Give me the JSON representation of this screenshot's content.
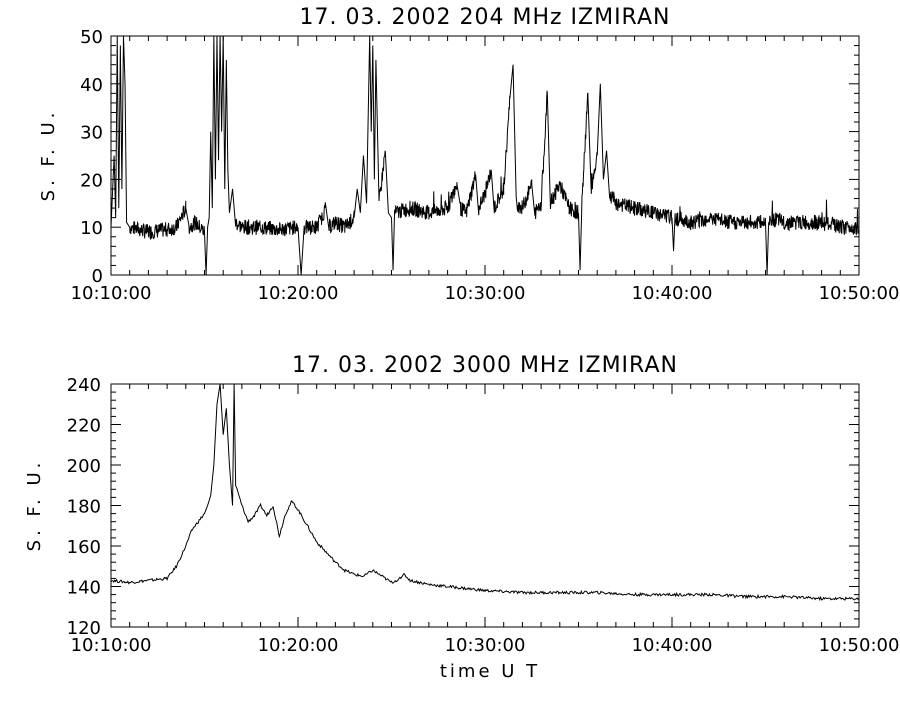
{
  "chart_data": [
    {
      "type": "line",
      "title": "17.  03.  2002    204  MHz    IZMIRAN",
      "ylabel": "S. F. U.",
      "xlabel": "",
      "x_unit": "time UT",
      "xlim": [
        "10:10:00",
        "10:50:00"
      ],
      "ylim": [
        0,
        50
      ],
      "x_tick_labels": [
        "10:10:00",
        "10:20:00",
        "10:30:00",
        "10:40:00",
        "10:50:00"
      ],
      "y_tick_labels": [
        "0",
        "10",
        "20",
        "30",
        "40",
        "50"
      ],
      "y_ticks": [
        0,
        10,
        20,
        30,
        40,
        50
      ],
      "grid": false,
      "baseline": 10,
      "points": [
        [
          "10:10:00",
          10
        ],
        [
          "10:10:10",
          25
        ],
        [
          "10:10:15",
          12
        ],
        [
          "10:10:20",
          50
        ],
        [
          "10:10:25",
          14
        ],
        [
          "10:10:30",
          48
        ],
        [
          "10:10:35",
          18
        ],
        [
          "10:10:40",
          50
        ],
        [
          "10:10:45",
          40
        ],
        [
          "10:10:50",
          11
        ],
        [
          "10:11:00",
          10
        ],
        [
          "10:12:00",
          9
        ],
        [
          "10:13:00",
          9.5
        ],
        [
          "10:13:30",
          10
        ],
        [
          "10:14:00",
          14
        ],
        [
          "10:14:10",
          10
        ],
        [
          "10:14:30",
          11
        ],
        [
          "10:15:00",
          9
        ],
        [
          "10:15:05",
          0
        ],
        [
          "10:15:10",
          10
        ],
        [
          "10:15:15",
          12
        ],
        [
          "10:15:20",
          30
        ],
        [
          "10:15:25",
          14
        ],
        [
          "10:15:30",
          50
        ],
        [
          "10:15:35",
          20
        ],
        [
          "10:15:40",
          50
        ],
        [
          "10:15:45",
          24
        ],
        [
          "10:15:50",
          50
        ],
        [
          "10:15:55",
          30
        ],
        [
          "10:16:00",
          50
        ],
        [
          "10:16:05",
          18
        ],
        [
          "10:16:10",
          45
        ],
        [
          "10:16:15",
          22
        ],
        [
          "10:16:20",
          13
        ],
        [
          "10:16:30",
          18
        ],
        [
          "10:16:40",
          11
        ],
        [
          "10:17:00",
          10
        ],
        [
          "10:18:00",
          10
        ],
        [
          "10:19:00",
          9.5
        ],
        [
          "10:20:00",
          10
        ],
        [
          "10:20:10",
          0
        ],
        [
          "10:20:20",
          10
        ],
        [
          "10:21:00",
          10
        ],
        [
          "10:21:30",
          14
        ],
        [
          "10:21:40",
          10
        ],
        [
          "10:22:00",
          11
        ],
        [
          "10:22:30",
          10
        ],
        [
          "10:23:00",
          12
        ],
        [
          "10:23:10",
          18
        ],
        [
          "10:23:20",
          13
        ],
        [
          "10:23:30",
          25
        ],
        [
          "10:23:40",
          15
        ],
        [
          "10:23:50",
          50
        ],
        [
          "10:23:55",
          30
        ],
        [
          "10:24:00",
          48
        ],
        [
          "10:24:05",
          20
        ],
        [
          "10:24:10",
          45
        ],
        [
          "10:24:20",
          15
        ],
        [
          "10:24:40",
          26
        ],
        [
          "10:24:50",
          13
        ],
        [
          "10:25:00",
          12
        ],
        [
          "10:25:05",
          1
        ],
        [
          "10:25:10",
          13
        ],
        [
          "10:26:00",
          14
        ],
        [
          "10:27:00",
          13
        ],
        [
          "10:28:00",
          14
        ],
        [
          "10:28:30",
          19
        ],
        [
          "10:28:40",
          14
        ],
        [
          "10:29:00",
          13
        ],
        [
          "10:29:30",
          21
        ],
        [
          "10:29:40",
          14
        ],
        [
          "10:30:00",
          17
        ],
        [
          "10:30:20",
          22
        ],
        [
          "10:30:30",
          14
        ],
        [
          "10:31:00",
          18
        ],
        [
          "10:31:20",
          37
        ],
        [
          "10:31:30",
          44
        ],
        [
          "10:31:40",
          15
        ],
        [
          "10:32:00",
          14
        ],
        [
          "10:32:30",
          19
        ],
        [
          "10:32:40",
          13
        ],
        [
          "10:33:00",
          15
        ],
        [
          "10:33:20",
          38
        ],
        [
          "10:33:30",
          15
        ],
        [
          "10:34:00",
          19
        ],
        [
          "10:34:30",
          14
        ],
        [
          "10:35:00",
          13
        ],
        [
          "10:35:05",
          1
        ],
        [
          "10:35:10",
          14
        ],
        [
          "10:35:30",
          38
        ],
        [
          "10:35:40",
          18
        ],
        [
          "10:36:00",
          25
        ],
        [
          "10:36:10",
          40
        ],
        [
          "10:36:20",
          20
        ],
        [
          "10:36:30",
          26
        ],
        [
          "10:36:40",
          17
        ],
        [
          "10:37:00",
          15
        ],
        [
          "10:38:00",
          14
        ],
        [
          "10:39:00",
          13
        ],
        [
          "10:40:00",
          12
        ],
        [
          "10:40:05",
          5
        ],
        [
          "10:40:10",
          12
        ],
        [
          "10:41:00",
          11
        ],
        [
          "10:42:00",
          12
        ],
        [
          "10:43:00",
          11
        ],
        [
          "10:44:00",
          11
        ],
        [
          "10:45:00",
          11
        ],
        [
          "10:45:05",
          0
        ],
        [
          "10:45:10",
          12
        ],
        [
          "10:46:00",
          11
        ],
        [
          "10:47:00",
          11
        ],
        [
          "10:48:00",
          11
        ],
        [
          "10:49:00",
          10
        ],
        [
          "10:50:00",
          10
        ]
      ]
    },
    {
      "type": "line",
      "title": "17.  03.  2002    3000  MHz    IZMIRAN",
      "ylabel": "S. F. U.",
      "xlabel": "time  U T",
      "xlim": [
        "10:10:00",
        "10:50:00"
      ],
      "ylim": [
        120,
        240
      ],
      "x_tick_labels": [
        "10:10:00",
        "10:20:00",
        "10:30:00",
        "10:40:00",
        "10:50:00"
      ],
      "y_tick_labels": [
        "120",
        "140",
        "160",
        "180",
        "200",
        "220",
        "240"
      ],
      "y_ticks": [
        120,
        140,
        160,
        180,
        200,
        220,
        240
      ],
      "grid": false,
      "points": [
        [
          "10:10:00",
          143
        ],
        [
          "10:11:00",
          142
        ],
        [
          "10:12:00",
          143
        ],
        [
          "10:13:00",
          144
        ],
        [
          "10:13:30",
          150
        ],
        [
          "10:14:00",
          160
        ],
        [
          "10:14:20",
          168
        ],
        [
          "10:14:40",
          172
        ],
        [
          "10:15:00",
          176
        ],
        [
          "10:15:10",
          180
        ],
        [
          "10:15:20",
          185
        ],
        [
          "10:15:30",
          200
        ],
        [
          "10:15:40",
          230
        ],
        [
          "10:15:50",
          240
        ],
        [
          "10:16:00",
          215
        ],
        [
          "10:16:10",
          228
        ],
        [
          "10:16:20",
          200
        ],
        [
          "10:16:30",
          180
        ],
        [
          "10:16:35",
          240
        ],
        [
          "10:16:40",
          190
        ],
        [
          "10:17:00",
          180
        ],
        [
          "10:17:20",
          172
        ],
        [
          "10:17:40",
          175
        ],
        [
          "10:18:00",
          180
        ],
        [
          "10:18:20",
          175
        ],
        [
          "10:18:40",
          180
        ],
        [
          "10:19:00",
          165
        ],
        [
          "10:19:20",
          176
        ],
        [
          "10:19:40",
          182
        ],
        [
          "10:20:00",
          178
        ],
        [
          "10:20:30",
          170
        ],
        [
          "10:21:00",
          162
        ],
        [
          "10:21:30",
          157
        ],
        [
          "10:22:00",
          152
        ],
        [
          "10:22:30",
          148
        ],
        [
          "10:23:00",
          146
        ],
        [
          "10:23:30",
          145
        ],
        [
          "10:24:00",
          148
        ],
        [
          "10:24:30",
          145
        ],
        [
          "10:25:00",
          142
        ],
        [
          "10:25:30",
          144
        ],
        [
          "10:25:40",
          146
        ],
        [
          "10:26:00",
          143
        ],
        [
          "10:27:00",
          141
        ],
        [
          "10:28:00",
          140
        ],
        [
          "10:29:00",
          139
        ],
        [
          "10:30:00",
          138
        ],
        [
          "10:32:00",
          137
        ],
        [
          "10:34:00",
          137
        ],
        [
          "10:36:00",
          137
        ],
        [
          "10:38:00",
          136
        ],
        [
          "10:40:00",
          136
        ],
        [
          "10:42:00",
          136
        ],
        [
          "10:44:00",
          135
        ],
        [
          "10:46:00",
          135
        ],
        [
          "10:48:00",
          134
        ],
        [
          "10:50:00",
          134
        ]
      ]
    }
  ]
}
